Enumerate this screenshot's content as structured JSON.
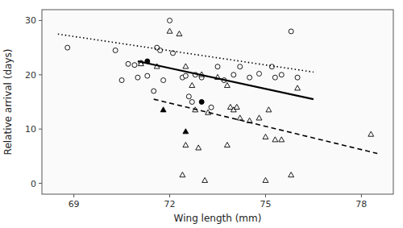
{
  "chart_data": {
    "type": "scatter",
    "xlabel": "Wing length (mm)",
    "ylabel": "Relative arrival (days)",
    "xlim": [
      68.0,
      79.0
    ],
    "ylim": [
      -2,
      32
    ],
    "xticks": [
      69,
      72,
      75,
      78
    ],
    "yticks": [
      0,
      10,
      20,
      30
    ],
    "grid": false,
    "series": [
      {
        "type": "scatter",
        "marker": "circle",
        "color": "#ffffff",
        "x": [
          68.8,
          70.3,
          70.7,
          70.9,
          71.0,
          71.1,
          71.3,
          71.5,
          71.6,
          71.7,
          71.8,
          72.0,
          72.1,
          72.4,
          72.5,
          72.6,
          72.8,
          73.0,
          73.5,
          73.7,
          74.0,
          74.2,
          74.5,
          74.8,
          75.2,
          75.3,
          75.5,
          75.8,
          76.0,
          70.5,
          72.7,
          73.3
        ],
        "values": [
          25.0,
          24.5,
          22.0,
          21.8,
          19.5,
          22.2,
          19.8,
          17.0,
          25.0,
          24.5,
          19.0,
          30.0,
          24.0,
          19.5,
          19.8,
          16.0,
          20.0,
          19.5,
          21.5,
          19.0,
          20.0,
          21.5,
          19.5,
          20.2,
          21.5,
          19.5,
          20.0,
          28.0,
          19.5,
          19.0,
          15.0,
          14.0
        ]
      },
      {
        "type": "scatter",
        "marker": "circle",
        "color": "#000000",
        "x": [
          71.3,
          73.0
        ],
        "values": [
          22.5,
          15.0
        ]
      },
      {
        "type": "scatter",
        "marker": "triangle",
        "color": "#ffffff",
        "x": [
          71.1,
          71.6,
          72.0,
          72.3,
          72.5,
          72.7,
          72.8,
          73.0,
          73.2,
          73.5,
          73.8,
          73.9,
          74.0,
          74.1,
          74.2,
          74.5,
          74.8,
          75.0,
          75.1,
          75.3,
          72.5,
          72.9,
          72.4,
          73.1,
          75.0,
          75.8,
          78.3,
          75.5,
          76.0,
          73.8
        ],
        "values": [
          22.0,
          21.5,
          28.0,
          27.5,
          21.5,
          18.0,
          13.5,
          20.0,
          13.0,
          19.5,
          18.0,
          14.0,
          13.5,
          14.0,
          12.0,
          11.5,
          12.0,
          8.5,
          13.5,
          8.0,
          7.0,
          6.5,
          1.5,
          0.5,
          0.5,
          1.5,
          9.0,
          8.0,
          17.5,
          7.0
        ]
      },
      {
        "type": "scatter",
        "marker": "triangle",
        "color": "#000000",
        "x": [
          71.8,
          72.5
        ],
        "values": [
          13.5,
          9.5
        ]
      },
      {
        "type": "line",
        "line_style": "solid",
        "color": "#000000",
        "x": [
          71.0,
          76.5
        ],
        "values": [
          22.5,
          15.5
        ]
      },
      {
        "type": "line",
        "line_style": "dotted",
        "color": "#000000",
        "x": [
          68.5,
          76.5
        ],
        "values": [
          27.5,
          20.5
        ]
      },
      {
        "type": "line",
        "line_style": "dashed",
        "color": "#000000",
        "x": [
          71.5,
          78.5
        ],
        "values": [
          15.5,
          5.5
        ]
      }
    ]
  }
}
